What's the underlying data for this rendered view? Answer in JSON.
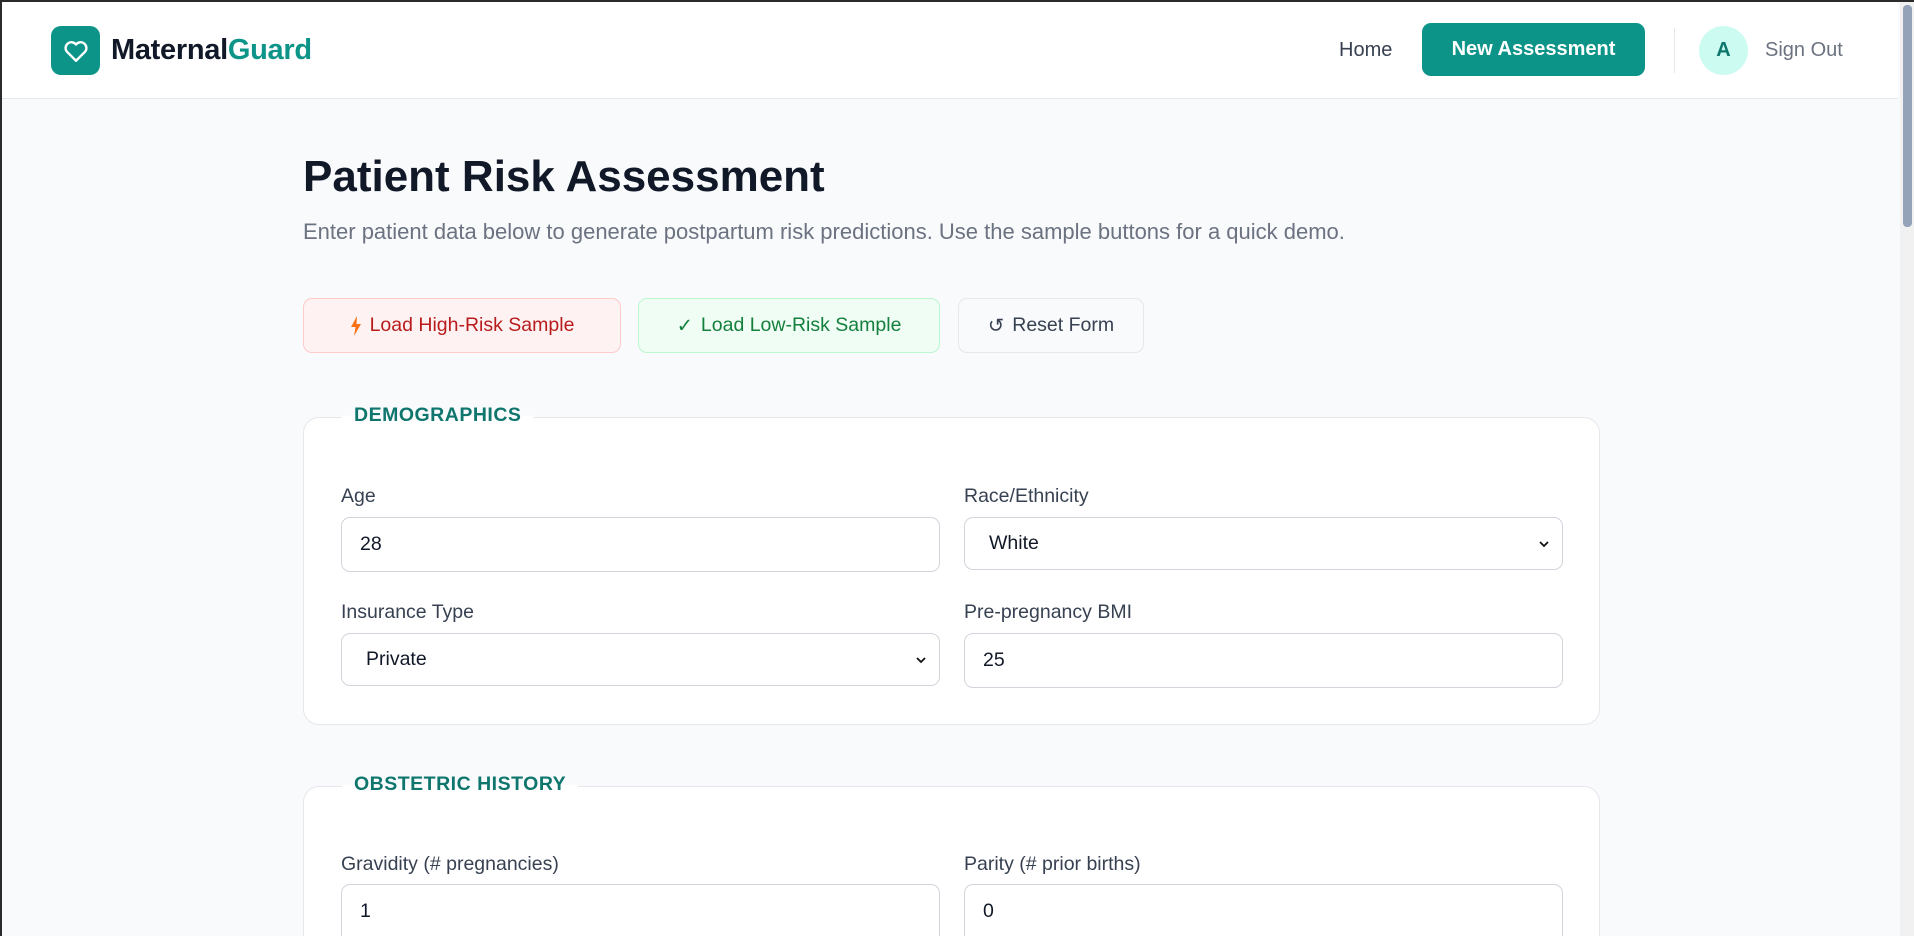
{
  "header": {
    "brand_part1": "Maternal",
    "brand_part2": "Guard",
    "nav_home": "Home",
    "new_assessment": "New Assessment",
    "avatar_initial": "A",
    "sign_out": "Sign Out",
    "logo_icon": "heart-icon"
  },
  "page": {
    "title": "Patient Risk Assessment",
    "subtitle": "Enter patient data below to generate postpartum risk predictions. Use the sample buttons for a quick demo."
  },
  "actions": {
    "high_risk": "Load High-Risk Sample",
    "low_risk_icon": "✓",
    "low_risk": "Load Low-Risk Sample",
    "reset_icon": "↺",
    "reset": "Reset Form"
  },
  "demographics": {
    "legend": "DEMOGRAPHICS",
    "age": {
      "label": "Age",
      "value": "28"
    },
    "race": {
      "label": "Race/Ethnicity",
      "value": "White"
    },
    "insurance": {
      "label": "Insurance Type",
      "value": "Private"
    },
    "bmi": {
      "label": "Pre-pregnancy BMI",
      "value": "25"
    }
  },
  "obstetric": {
    "legend": "OBSTETRIC HISTORY",
    "gravidity": {
      "label": "Gravidity (# pregnancies)",
      "value": "1"
    },
    "parity": {
      "label": "Parity (# prior births)",
      "value": "0"
    }
  },
  "colors": {
    "accent": "#0d9488",
    "danger": "#b91c1c",
    "success": "#15803d"
  }
}
